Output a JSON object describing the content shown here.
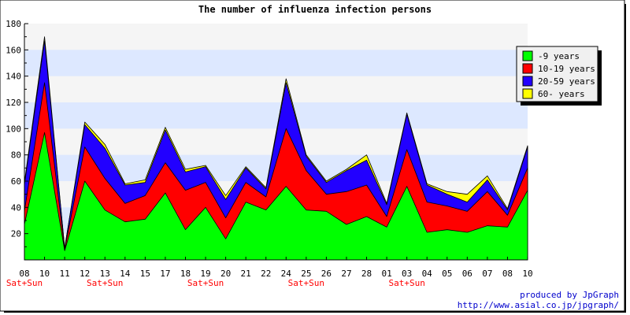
{
  "chart_data": {
    "type": "area",
    "title": "The number of influenza infection persons",
    "xlabel": "",
    "ylabel": "",
    "ylim": [
      0,
      180
    ],
    "yticks": [
      20,
      40,
      60,
      80,
      100,
      120,
      140,
      160,
      180
    ],
    "categories": [
      "08",
      "10",
      "11",
      "12",
      "13",
      "14",
      "15",
      "17",
      "18",
      "19",
      "20",
      "21",
      "22",
      "24",
      "25",
      "26",
      "27",
      "28",
      "01",
      "03",
      "04",
      "05",
      "06",
      "07",
      "08",
      "10"
    ],
    "weekend_label": "Sat+Sun",
    "weekend_indices": [
      0,
      4,
      9,
      14,
      19
    ],
    "stacked": true,
    "grid": "horizontal bands",
    "legend_position": "right",
    "series": [
      {
        "name": "-9 years",
        "color": "#00ff00",
        "values": [
          27,
          97,
          7,
          60,
          38,
          29,
          31,
          51,
          23,
          40,
          16,
          44,
          38,
          56,
          38,
          37,
          27,
          33,
          25,
          56,
          21,
          23,
          21,
          26,
          25,
          53
        ]
      },
      {
        "name": "10-19 years",
        "color": "#ff0000",
        "values": [
          10,
          38,
          1,
          26,
          24,
          14,
          18,
          23,
          30,
          19,
          16,
          15,
          10,
          44,
          30,
          13,
          25,
          24,
          8,
          28,
          23,
          18,
          16,
          26,
          9,
          17
        ]
      },
      {
        "name": "20-59 years",
        "color": "#2200ff",
        "values": [
          20,
          32,
          1,
          17,
          23,
          14,
          10,
          25,
          14,
          12,
          14,
          11,
          6,
          35,
          11,
          9,
          16,
          19,
          9,
          27,
          13,
          9,
          7,
          9,
          4,
          16
        ]
      },
      {
        "name": "60- years",
        "color": "#ffff00",
        "values": [
          2,
          3,
          0,
          2,
          3,
          1,
          2,
          2,
          2,
          1,
          3,
          1,
          1,
          3,
          1,
          1,
          1,
          4,
          1,
          1,
          1,
          2,
          6,
          3,
          1,
          1
        ]
      }
    ]
  },
  "footer": {
    "line1": "produced by JpGraph",
    "line2": "http://www.asial.co.jp/jpgraph/"
  }
}
